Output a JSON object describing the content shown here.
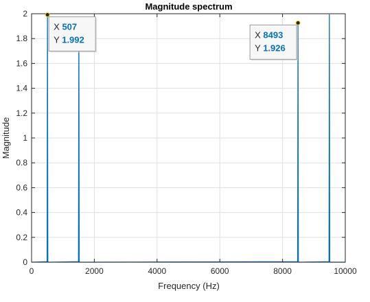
{
  "chart_data": {
    "type": "line",
    "title": "Magnitude spectrum",
    "xlabel": "Frequency (Hz)",
    "ylabel": "Magnitude",
    "xlim": [
      0,
      10000
    ],
    "ylim": [
      0,
      2
    ],
    "xticks": [
      0,
      2000,
      4000,
      6000,
      8000,
      10000
    ],
    "xtick_labels": [
      "0",
      "2000",
      "4000",
      "6000",
      "8000",
      "10000"
    ],
    "yticks": [
      0,
      0.2,
      0.4,
      0.6,
      0.8,
      1,
      1.2,
      1.4,
      1.6,
      1.8,
      2
    ],
    "ytick_labels": [
      "0",
      "0.2",
      "0.4",
      "0.6",
      "0.8",
      "1",
      "1.2",
      "1.4",
      "1.6",
      "1.8",
      "2"
    ],
    "grid": true,
    "series": [
      {
        "color": "#0072BD",
        "peaks": [
          {
            "x": 507,
            "y": 1.992
          },
          {
            "x": 1507,
            "y": 1.926
          },
          {
            "x": 8493,
            "y": 1.926
          },
          {
            "x": 9493,
            "y": 1.992
          }
        ]
      }
    ],
    "datatips": [
      {
        "x_key": "X",
        "x": "507",
        "y_key": "Y",
        "y": "1.992",
        "anchor_x": 507,
        "anchor_y": 1.992
      },
      {
        "x_key": "X",
        "x": "8493",
        "y_key": "Y",
        "y": "1.926",
        "anchor_x": 8493,
        "anchor_y": 1.926
      }
    ],
    "colors": {
      "line": "#0072BD",
      "datatip_value": "#0072BD",
      "grid": "#dfdfdf",
      "axis": "#262626"
    }
  }
}
